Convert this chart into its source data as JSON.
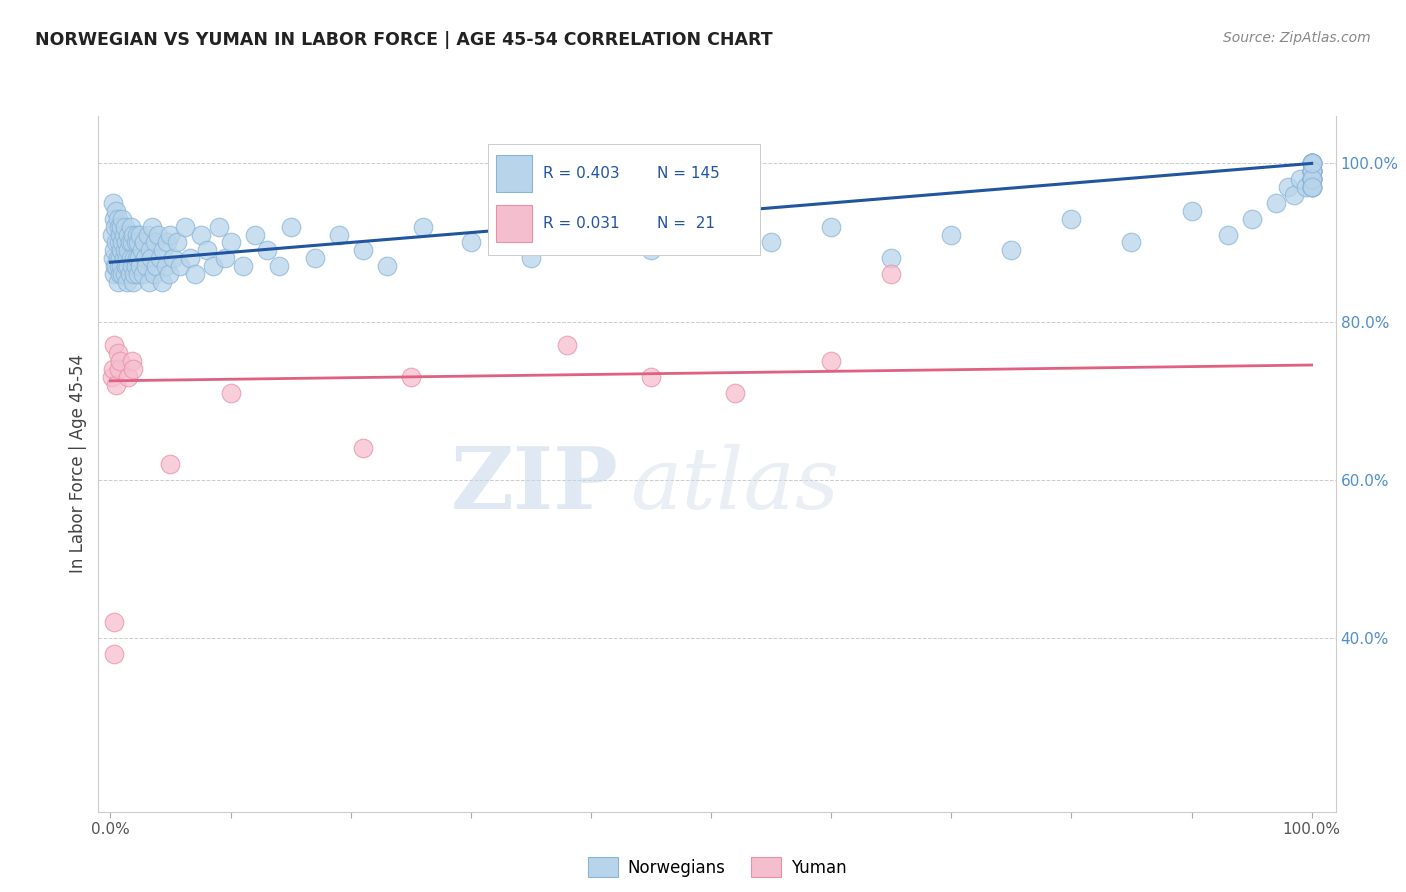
{
  "title": "NORWEGIAN VS YUMAN IN LABOR FORCE | AGE 45-54 CORRELATION CHART",
  "source_text": "Source: ZipAtlas.com",
  "ylabel": "In Labor Force | Age 45-54",
  "xlim": [
    -0.01,
    1.02
  ],
  "ylim": [
    0.18,
    1.06
  ],
  "xticks": [
    0.0,
    0.1,
    0.2,
    0.3,
    0.4,
    0.5,
    0.6,
    0.7,
    0.8,
    0.9,
    1.0
  ],
  "xticklabels": [
    "0.0%",
    "",
    "",
    "",
    "",
    "",
    "",
    "",
    "",
    "",
    "100.0%"
  ],
  "yticks_right": [
    0.4,
    0.6,
    0.8,
    1.0
  ],
  "yticklabels_right": [
    "40.0%",
    "60.0%",
    "80.0%",
    "100.0%"
  ],
  "norwegian_color": "#b8d4ea",
  "norwegian_edge": "#88b4d8",
  "yuman_color": "#f5bece",
  "yuman_edge": "#e890a8",
  "trend_norwegian_color": "#2255a0",
  "trend_yuman_color": "#e06080",
  "r_norwegian": 0.403,
  "n_norwegian": 145,
  "r_yuman": 0.031,
  "n_yuman": 21,
  "watermark_zip": "ZIP",
  "watermark_atlas": "atlas",
  "legend_label_norwegian": "Norwegians",
  "legend_label_yuman": "Yuman",
  "nor_trend_x0": 0.0,
  "nor_trend_y0": 0.875,
  "nor_trend_x1": 1.0,
  "nor_trend_y1": 1.0,
  "yum_trend_x0": 0.0,
  "yum_trend_y0": 0.725,
  "yum_trend_x1": 1.0,
  "yum_trend_y1": 0.745,
  "nor_x": [
    0.001,
    0.002,
    0.002,
    0.003,
    0.003,
    0.003,
    0.004,
    0.004,
    0.005,
    0.005,
    0.005,
    0.006,
    0.006,
    0.006,
    0.007,
    0.007,
    0.007,
    0.008,
    0.008,
    0.008,
    0.009,
    0.009,
    0.009,
    0.01,
    0.01,
    0.01,
    0.011,
    0.011,
    0.012,
    0.012,
    0.012,
    0.013,
    0.013,
    0.014,
    0.014,
    0.015,
    0.015,
    0.015,
    0.016,
    0.016,
    0.017,
    0.017,
    0.018,
    0.018,
    0.019,
    0.019,
    0.02,
    0.02,
    0.021,
    0.021,
    0.022,
    0.022,
    0.023,
    0.023,
    0.024,
    0.025,
    0.025,
    0.026,
    0.027,
    0.028,
    0.029,
    0.03,
    0.031,
    0.032,
    0.033,
    0.034,
    0.035,
    0.036,
    0.037,
    0.038,
    0.04,
    0.041,
    0.043,
    0.044,
    0.046,
    0.047,
    0.049,
    0.05,
    0.052,
    0.055,
    0.058,
    0.062,
    0.066,
    0.07,
    0.075,
    0.08,
    0.085,
    0.09,
    0.095,
    0.1,
    0.11,
    0.12,
    0.13,
    0.14,
    0.15,
    0.17,
    0.19,
    0.21,
    0.23,
    0.26,
    0.3,
    0.35,
    0.4,
    0.45,
    0.5,
    0.55,
    0.6,
    0.65,
    0.7,
    0.75,
    0.8,
    0.85,
    0.9,
    0.93,
    0.95,
    0.97,
    0.98,
    0.985,
    0.99,
    0.995,
    1.0,
    1.0,
    1.0,
    1.0,
    1.0,
    1.0,
    1.0,
    1.0,
    1.0,
    1.0,
    1.0,
    1.0,
    1.0,
    1.0,
    1.0,
    1.0,
    1.0,
    1.0,
    1.0,
    1.0,
    1.0,
    1.0,
    1.0,
    1.0,
    1.0
  ],
  "nor_y": [
    0.91,
    0.95,
    0.88,
    0.93,
    0.89,
    0.86,
    0.92,
    0.87,
    0.94,
    0.9,
    0.87,
    0.93,
    0.88,
    0.85,
    0.92,
    0.87,
    0.9,
    0.91,
    0.86,
    0.88,
    0.92,
    0.87,
    0.89,
    0.9,
    0.86,
    0.93,
    0.88,
    0.91,
    0.89,
    0.86,
    0.92,
    0.87,
    0.9,
    0.88,
    0.85,
    0.91,
    0.87,
    0.89,
    0.9,
    0.86,
    0.92,
    0.88,
    0.87,
    0.9,
    0.85,
    0.91,
    0.88,
    0.86,
    0.9,
    0.87,
    0.91,
    0.88,
    0.86,
    0.9,
    0.88,
    0.87,
    0.91,
    0.89,
    0.86,
    0.9,
    0.88,
    0.87,
    0.91,
    0.85,
    0.89,
    0.88,
    0.92,
    0.86,
    0.9,
    0.87,
    0.91,
    0.88,
    0.85,
    0.89,
    0.87,
    0.9,
    0.86,
    0.91,
    0.88,
    0.9,
    0.87,
    0.92,
    0.88,
    0.86,
    0.91,
    0.89,
    0.87,
    0.92,
    0.88,
    0.9,
    0.87,
    0.91,
    0.89,
    0.87,
    0.92,
    0.88,
    0.91,
    0.89,
    0.87,
    0.92,
    0.9,
    0.88,
    0.91,
    0.89,
    0.93,
    0.9,
    0.92,
    0.88,
    0.91,
    0.89,
    0.93,
    0.9,
    0.94,
    0.91,
    0.93,
    0.95,
    0.97,
    0.96,
    0.98,
    0.97,
    0.99,
    0.98,
    1.0,
    0.99,
    0.97,
    0.98,
    1.0,
    0.99,
    0.97,
    0.98,
    1.0,
    0.99,
    0.98,
    1.0,
    0.99,
    0.98,
    0.97,
    1.0,
    0.99,
    0.98,
    1.0,
    0.99,
    0.98,
    0.97,
    1.0
  ],
  "yum_x": [
    0.001,
    0.002,
    0.003,
    0.005,
    0.006,
    0.007,
    0.008,
    0.015,
    0.018,
    0.019,
    0.05,
    0.1,
    0.21,
    0.25,
    0.38,
    0.45,
    0.52,
    0.6,
    0.65,
    0.003,
    0.003
  ],
  "yum_y": [
    0.73,
    0.74,
    0.77,
    0.72,
    0.76,
    0.74,
    0.75,
    0.73,
    0.75,
    0.74,
    0.62,
    0.71,
    0.64,
    0.73,
    0.77,
    0.73,
    0.71,
    0.75,
    0.86,
    0.38,
    0.42
  ]
}
